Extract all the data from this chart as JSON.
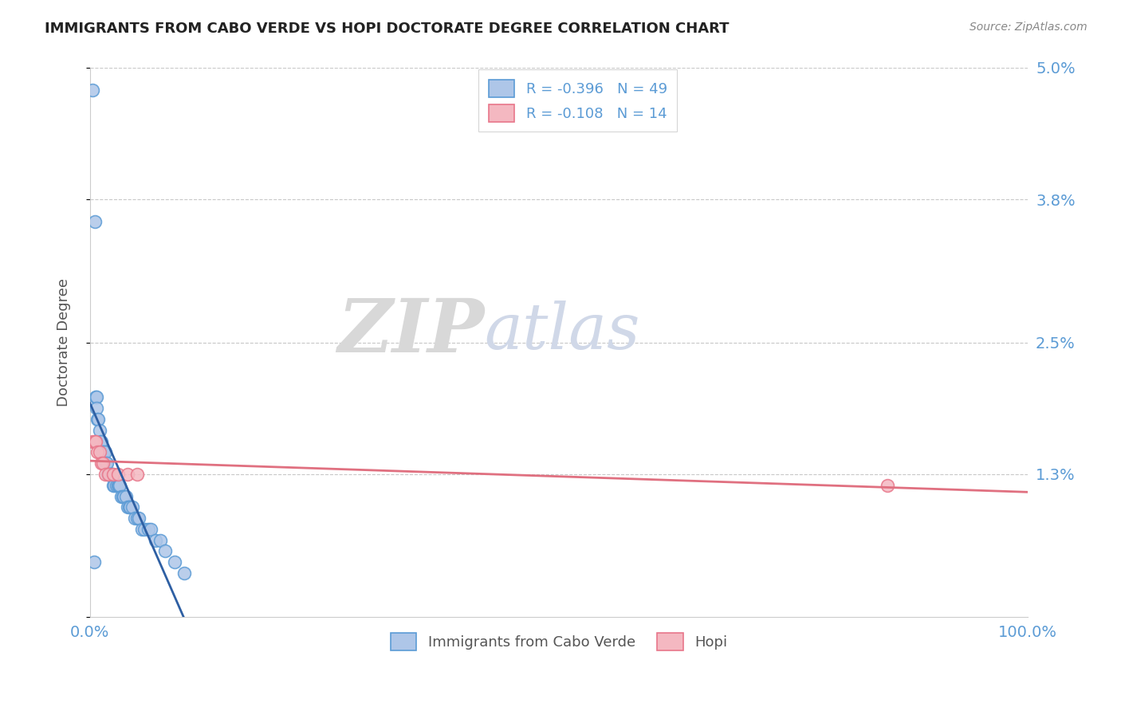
{
  "title": "IMMIGRANTS FROM CABO VERDE VS HOPI DOCTORATE DEGREE CORRELATION CHART",
  "source": "Source: ZipAtlas.com",
  "xlabel": "",
  "ylabel": "Doctorate Degree",
  "xlim": [
    0.0,
    1.0
  ],
  "ylim": [
    0.0,
    0.05
  ],
  "yticks": [
    0.0,
    0.013,
    0.025,
    0.038,
    0.05
  ],
  "ytick_labels": [
    "",
    "1.3%",
    "2.5%",
    "3.8%",
    "5.0%"
  ],
  "xtick_labels": [
    "0.0%",
    "100.0%"
  ],
  "xticks": [
    0.0,
    1.0
  ],
  "cabo_verde_color": "#aec6e8",
  "hopi_color": "#f4b8c1",
  "cabo_verde_edge": "#5b9bd5",
  "hopi_edge": "#e8768a",
  "trend_cabo_color": "#2e5fa3",
  "trend_hopi_color": "#e07080",
  "R_cabo": -0.396,
  "N_cabo": 49,
  "R_hopi": -0.108,
  "N_hopi": 14,
  "cabo_verde_x": [
    0.003,
    0.004,
    0.005,
    0.006,
    0.007,
    0.007,
    0.008,
    0.009,
    0.01,
    0.011,
    0.012,
    0.013,
    0.014,
    0.015,
    0.016,
    0.017,
    0.018,
    0.019,
    0.02,
    0.021,
    0.022,
    0.023,
    0.024,
    0.025,
    0.026,
    0.028,
    0.03,
    0.031,
    0.032,
    0.033,
    0.035,
    0.036,
    0.038,
    0.04,
    0.042,
    0.043,
    0.045,
    0.048,
    0.05,
    0.052,
    0.055,
    0.058,
    0.062,
    0.065,
    0.07,
    0.075,
    0.08,
    0.09,
    0.1
  ],
  "cabo_verde_y": [
    0.048,
    0.005,
    0.036,
    0.02,
    0.02,
    0.019,
    0.018,
    0.018,
    0.017,
    0.016,
    0.016,
    0.015,
    0.015,
    0.015,
    0.015,
    0.014,
    0.014,
    0.013,
    0.013,
    0.013,
    0.013,
    0.013,
    0.013,
    0.012,
    0.012,
    0.012,
    0.012,
    0.012,
    0.012,
    0.011,
    0.011,
    0.011,
    0.011,
    0.01,
    0.01,
    0.01,
    0.01,
    0.009,
    0.009,
    0.009,
    0.008,
    0.008,
    0.008,
    0.008,
    0.007,
    0.007,
    0.006,
    0.005,
    0.004
  ],
  "hopi_x": [
    0.003,
    0.005,
    0.006,
    0.008,
    0.01,
    0.012,
    0.014,
    0.016,
    0.02,
    0.025,
    0.03,
    0.04,
    0.05,
    0.85
  ],
  "hopi_y": [
    0.016,
    0.016,
    0.016,
    0.015,
    0.015,
    0.014,
    0.014,
    0.013,
    0.013,
    0.013,
    0.013,
    0.013,
    0.013,
    0.012
  ],
  "watermark_zip": "ZIP",
  "watermark_atlas": "atlas",
  "legend_label_cabo": "Immigrants from Cabo Verde",
  "legend_label_hopi": "Hopi",
  "background_color": "#ffffff",
  "grid_color": "#c8c8c8",
  "legend_text_color": "#5b9bd5",
  "axis_text_color": "#5b9bd5",
  "spine_color": "#cccccc"
}
